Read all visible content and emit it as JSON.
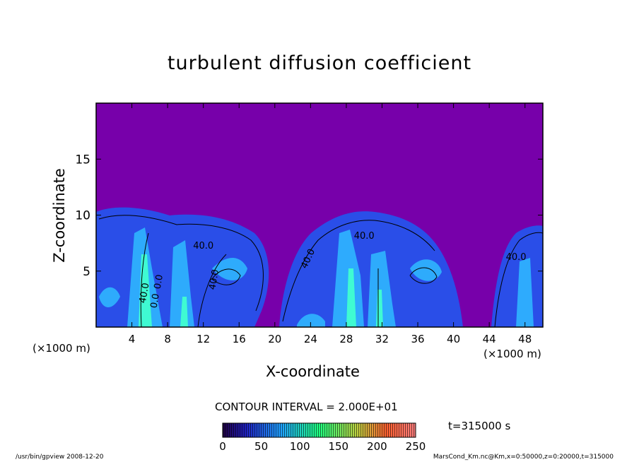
{
  "chart_data": {
    "type": "heatmap",
    "title": "turbulent diffusion coefficient",
    "xlabel": "X-coordinate",
    "ylabel": "Z-coordinate",
    "x_unit": "(×1000 m)",
    "x_ticks": [
      4,
      8,
      12,
      16,
      20,
      24,
      28,
      32,
      36,
      40,
      44,
      48
    ],
    "y_ticks": [
      5,
      10,
      15
    ],
    "xlim": [
      0,
      50
    ],
    "ylim": [
      0,
      20
    ],
    "contour_labels": [
      "40.0",
      "40.0",
      "40.0",
      "40.0",
      "40.0",
      "0.0",
      "0.0",
      "40.0"
    ],
    "contour_interval_text": "CONTOUR INTERVAL = 2.000E+01",
    "colorbar": {
      "ticks": [
        0,
        50,
        100,
        150,
        200,
        250
      ],
      "range": [
        0,
        250
      ]
    },
    "time_text": "t=315000 s",
    "colors": {
      "background_field": "#7700aa",
      "low": "#2233dd",
      "mid": "#22aaff",
      "high": "#33ffcc"
    }
  },
  "footer": {
    "left": "/usr/bin/gpview   2008-12-20",
    "right": "MarsCond_Km.nc@Km,x=0:50000,z=0:20000,t=315000"
  }
}
